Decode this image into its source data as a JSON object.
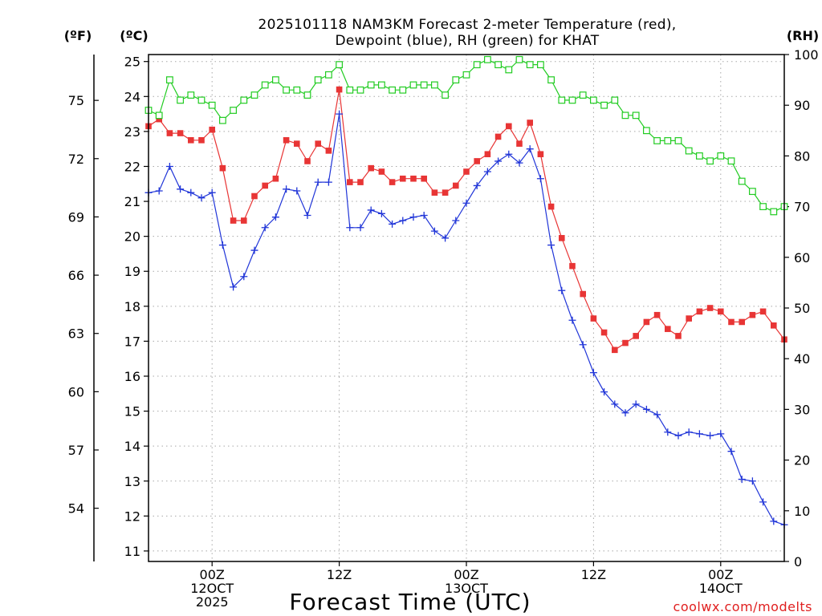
{
  "chart_data": {
    "type": "line",
    "title_line1": "2025101118 NAM3KM Forecast 2-meter Temperature (red),",
    "title_line2": "Dewpoint (blue), RH (green) for KHAT",
    "unit_f": "(ºF)",
    "unit_c": "(ºC)",
    "unit_rh": "(RH)",
    "xlabel": "Forecast Time (UTC)",
    "credit": "coolwx.com/modelts",
    "x_range_hours": [
      -6,
      54
    ],
    "c_range": [
      10.7,
      25.2
    ],
    "rh_range": [
      0,
      100
    ],
    "f_range": [
      51.26,
      77.36
    ],
    "c_ticks": [
      11,
      12,
      13,
      14,
      15,
      16,
      17,
      18,
      19,
      20,
      21,
      22,
      23,
      24,
      25
    ],
    "f_ticks": [
      54,
      57,
      60,
      63,
      66,
      69,
      72,
      75
    ],
    "rh_ticks": [
      0,
      10,
      20,
      30,
      40,
      50,
      60,
      70,
      80,
      90,
      100
    ],
    "x_ticks": [
      {
        "hour": 0,
        "line1": "00Z",
        "line2": "12OCT",
        "line3": "2025"
      },
      {
        "hour": 12,
        "line1": "12Z",
        "line2": "",
        "line3": ""
      },
      {
        "hour": 24,
        "line1": "00Z",
        "line2": "13OCT",
        "line3": ""
      },
      {
        "hour": 36,
        "line1": "12Z",
        "line2": "",
        "line3": ""
      },
      {
        "hour": 48,
        "line1": "00Z",
        "line2": "14OCT",
        "line3": ""
      }
    ],
    "series": [
      {
        "name": "Temperature",
        "unit": "C",
        "color": "#e83535",
        "marker": "filled-square",
        "values": [
          23.15,
          23.35,
          22.95,
          22.95,
          22.75,
          22.75,
          23.05,
          21.95,
          20.45,
          20.45,
          21.15,
          21.45,
          21.65,
          22.75,
          22.65,
          22.15,
          22.65,
          22.45,
          24.2,
          21.55,
          21.55,
          21.95,
          21.85,
          21.55,
          21.65,
          21.65,
          21.65,
          21.25,
          21.25,
          21.45,
          21.85,
          22.15,
          22.35,
          22.85,
          23.15,
          22.65,
          23.25,
          22.35,
          20.85,
          19.95,
          19.15,
          18.35,
          17.65,
          17.25,
          16.75,
          16.95,
          17.15,
          17.55,
          17.75,
          17.35,
          17.15,
          17.65,
          17.85,
          17.95,
          17.85,
          17.55,
          17.55,
          17.75,
          17.85,
          17.45,
          17.05
        ]
      },
      {
        "name": "Dewpoint",
        "unit": "C",
        "color": "#2035d8",
        "marker": "plus",
        "values": [
          21.25,
          21.3,
          22.0,
          21.35,
          21.25,
          21.1,
          21.25,
          19.75,
          18.55,
          18.85,
          19.6,
          20.25,
          20.55,
          21.35,
          21.3,
          20.6,
          21.55,
          21.55,
          23.5,
          20.25,
          20.25,
          20.75,
          20.65,
          20.35,
          20.45,
          20.55,
          20.6,
          20.15,
          19.95,
          20.45,
          20.95,
          21.45,
          21.85,
          22.15,
          22.35,
          22.1,
          22.5,
          21.65,
          19.75,
          18.45,
          17.6,
          16.9,
          16.1,
          15.55,
          15.2,
          14.95,
          15.2,
          15.05,
          14.9,
          14.4,
          14.3,
          14.4,
          14.35,
          14.3,
          14.35,
          13.85,
          13.05,
          13.0,
          12.4,
          11.85,
          11.75
        ]
      },
      {
        "name": "Relative Humidity",
        "unit": "%",
        "color": "#22cc22",
        "marker": "open-square",
        "values": [
          89,
          88,
          95,
          91,
          92,
          91,
          90,
          87,
          89,
          91,
          92,
          94,
          95,
          93,
          93,
          92,
          95,
          96,
          98,
          93,
          93,
          94,
          94,
          93,
          93,
          94,
          94,
          94,
          92,
          95,
          96,
          98,
          99,
          98,
          97,
          99,
          98,
          98,
          95,
          91,
          91,
          92,
          91,
          90,
          91,
          88,
          88,
          85,
          83,
          83,
          83,
          81,
          80,
          79,
          80,
          79,
          75,
          73,
          70,
          69,
          70
        ]
      }
    ]
  }
}
